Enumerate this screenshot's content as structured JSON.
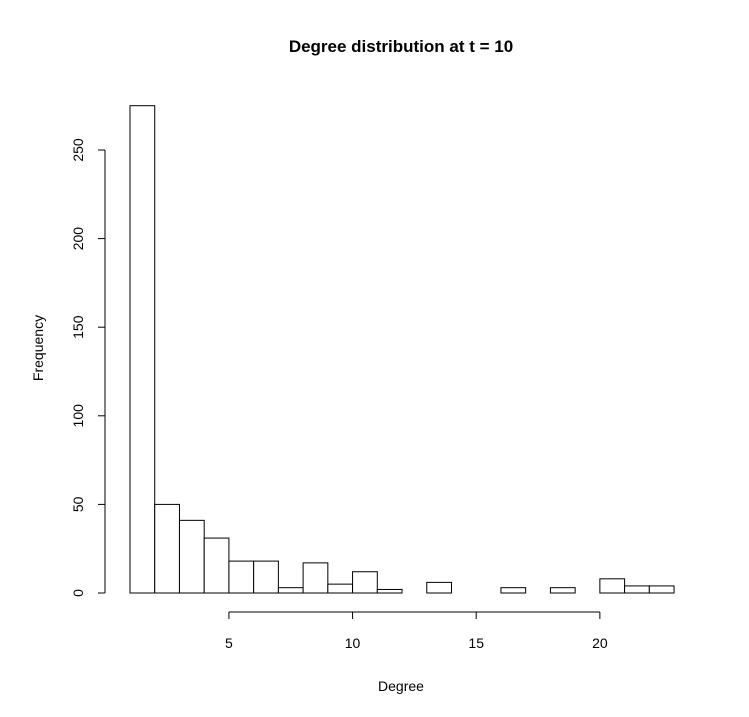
{
  "chart_data": {
    "type": "bar",
    "title": "Degree distribution at t = 10",
    "xlabel": "Degree",
    "ylabel": "Frequency",
    "bin_start": 1,
    "bin_width": 1,
    "values": [
      275,
      50,
      41,
      31,
      18,
      18,
      3,
      17,
      5,
      12,
      2,
      0,
      6,
      0,
      0,
      3,
      0,
      3,
      0,
      8,
      4,
      4
    ],
    "xlim": [
      1,
      23
    ],
    "ylim": [
      0,
      275
    ],
    "xticks": [
      5,
      10,
      15,
      20
    ],
    "yticks": [
      0,
      50,
      100,
      150,
      200,
      250
    ],
    "grid": false,
    "colors": {
      "bar_fill": "#ffffff",
      "bar_stroke": "#000000",
      "axis": "#000000"
    }
  }
}
